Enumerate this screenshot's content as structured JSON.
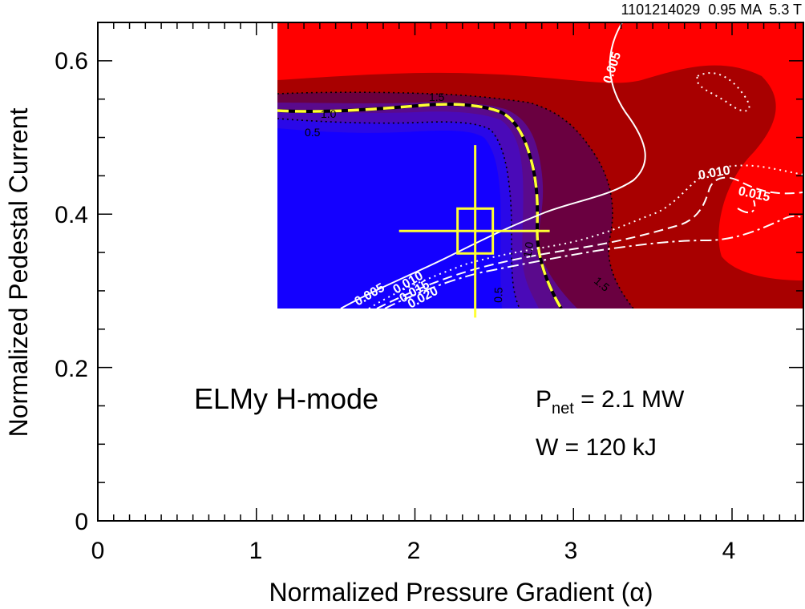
{
  "chart_data": {
    "type": "contour",
    "shot_info": "1101214029  0.95 MA  5.3 T",
    "xlabel": "Normalized Pressure Gradient (α)",
    "ylabel": "Normalized Pedestal Current",
    "xlim": [
      0,
      4.45
    ],
    "ylim": [
      0,
      0.65
    ],
    "xticks": [
      0,
      1,
      2,
      3,
      4
    ],
    "yticks": [
      0,
      0.2,
      0.4,
      0.6
    ],
    "xtick_labels": [
      "0",
      "1",
      "2",
      "3",
      "4"
    ],
    "ytick_labels": [
      "0",
      "0.2",
      "0.4",
      "0.6"
    ],
    "contour_region": {
      "x": [
        1.15,
        4.45
      ],
      "y": [
        0.275,
        0.65
      ]
    },
    "fill_colors": [
      "#1400ff",
      "#2a08e8",
      "#4a0ab8",
      "#5a0a8c",
      "#6a0040",
      "#a80000",
      "#ff0000"
    ],
    "growth_rate_contours": [
      "0.5",
      "1.0",
      "1.5"
    ],
    "transport_contours": [
      "0.005",
      "0.010",
      "0.015",
      "0.020"
    ],
    "marker": {
      "x": 2.38,
      "y": 0.378,
      "xerr": [
        1.9,
        2.85
      ],
      "yerr": [
        0.265,
        0.49
      ]
    },
    "annotations": {
      "regime": "ELMy H-mode",
      "pnet_prefix": "P",
      "pnet_sub": "net",
      "pnet_value": " = 2.1 MW",
      "energy": "W = 120 kJ"
    }
  }
}
